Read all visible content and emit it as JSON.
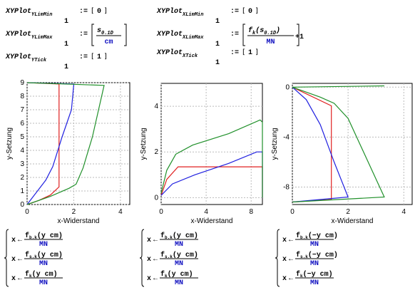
{
  "definitions": [
    {
      "name": "XYPlot",
      "sub": "YLimMin",
      "index": "1",
      "assign": ":=",
      "value": "0"
    },
    {
      "name": "XYPlot",
      "sub": "YLimMax",
      "index": "1",
      "assign": ":=",
      "num": "s",
      "num_sub": "0.1D",
      "den": "cm"
    },
    {
      "name": "XYPlot",
      "sub": "YTick",
      "index": "1",
      "assign": ":=",
      "value": "1"
    },
    {
      "name": "XYPlot",
      "sub": "XLimMin",
      "index": "1",
      "assign": ":=",
      "value": "0"
    },
    {
      "name": "XYPlot",
      "sub": "XLimMax",
      "index": "1",
      "assign": ":=",
      "num": "f",
      "num_sub": "k",
      "arg": "(s",
      "arg_sub": "0.1D",
      "arg_end": ")",
      "den": "MN",
      "tail": "+1"
    },
    {
      "name": "XYPlot",
      "sub": "XTick",
      "index": "1",
      "assign": ":=",
      "value": "1"
    }
  ],
  "chart_data": [
    {
      "type": "line",
      "x_label": "x-Widerstand",
      "y_label": "y-Setzung",
      "xlim": [
        0,
        4.4
      ],
      "ylim": [
        0,
        9
      ],
      "xticks": [
        0,
        2,
        4
      ],
      "yticks": [
        0,
        1,
        2,
        3,
        4,
        5,
        6,
        7,
        8,
        9
      ],
      "grid": true,
      "series": [
        {
          "color": "#e02020",
          "x": [
            0,
            0.5,
            1.0,
            1.37,
            1.37,
            0
          ],
          "values": [
            0,
            0.3,
            0.7,
            1.3,
            8.9,
            9
          ]
        },
        {
          "color": "#2020e0",
          "x": [
            0,
            0.8,
            1.1,
            1.5,
            1.9,
            2.0,
            0
          ],
          "values": [
            0,
            1.8,
            2.8,
            5,
            7,
            8.9,
            9
          ]
        },
        {
          "color": "#20902a",
          "x": [
            0,
            1.0,
            1.8,
            2.1,
            2.4,
            2.8,
            3.3,
            0
          ],
          "values": [
            0,
            0.6,
            1.2,
            1.5,
            2.7,
            5,
            8.8,
            9
          ]
        }
      ]
    },
    {
      "type": "line",
      "x_label": "x-Widerstand",
      "y_label": "y-Setzung",
      "xlim": [
        0,
        9
      ],
      "ylim": [
        -0.3,
        5
      ],
      "xticks": [
        0,
        4,
        8
      ],
      "yticks": [
        0,
        2,
        4
      ],
      "grid": true,
      "series": [
        {
          "color": "#e02020",
          "x": [
            0,
            0.5,
            1.5,
            9,
            9
          ],
          "values": [
            0.1,
            0.8,
            1.35,
            1.35,
            0
          ]
        },
        {
          "color": "#2020e0",
          "x": [
            0,
            1,
            3,
            6,
            8.5,
            9,
            9
          ],
          "values": [
            0.1,
            0.6,
            1.0,
            1.5,
            2.0,
            2.0,
            0
          ]
        },
        {
          "color": "#20902a",
          "x": [
            0,
            0.5,
            1.3,
            2.8,
            6,
            8.8,
            9,
            9
          ],
          "values": [
            0.2,
            1.2,
            1.9,
            2.3,
            2.8,
            3.4,
            3.3,
            0
          ]
        }
      ]
    },
    {
      "type": "line",
      "x_label": "x-Widerstand",
      "y_label": "y-Setzung",
      "xlim": [
        0,
        4.3
      ],
      "ylim": [
        -9.4,
        0.3
      ],
      "xticks": [
        0,
        2,
        4
      ],
      "yticks": [
        0,
        -4,
        -8
      ],
      "grid": true,
      "series": [
        {
          "color": "#e02020",
          "x": [
            0,
            1.4,
            1.4,
            0
          ],
          "values": [
            0,
            -1.5,
            -9,
            -9.2
          ]
        },
        {
          "color": "#2020e0",
          "x": [
            0,
            0.5,
            1,
            1.5,
            2,
            0
          ],
          "values": [
            0,
            -1,
            -3,
            -6,
            -8.8,
            -9.2
          ]
        },
        {
          "color": "#20902a",
          "x": [
            3.3,
            0,
            1,
            1.5,
            2,
            3.3,
            0
          ],
          "values": [
            0.1,
            0,
            -0.8,
            -1.3,
            -2.5,
            -8.8,
            -9.2
          ]
        }
      ]
    }
  ],
  "blocks": [
    {
      "rows": [
        {
          "lhs": "x",
          "op": "←",
          "num": "f",
          "num_sub": "b.k",
          "arg": "(y cm)",
          "den": "MN"
        },
        {
          "lhs": "x",
          "op": "←",
          "num": "f",
          "num_sub": "s.k",
          "arg": "(y cm)",
          "den": "MN"
        },
        {
          "lhs": "x",
          "op": "←",
          "num": "f",
          "num_sub": "k",
          "arg": "(y cm)",
          "den": "MN"
        }
      ]
    },
    {
      "rows": [
        {
          "lhs": "x",
          "op": "←",
          "num": "f",
          "num_sub": "b.k",
          "arg": "(y cm)",
          "den": "MN"
        },
        {
          "lhs": "x",
          "op": "←",
          "num": "f",
          "num_sub": "s.k",
          "arg": "(y cm)",
          "den": "MN"
        },
        {
          "lhs": "x",
          "op": "←",
          "num": "f",
          "num_sub": "k",
          "arg": "(y cm)",
          "den": "MN"
        }
      ]
    },
    {
      "rows": [
        {
          "lhs": "x",
          "op": "←",
          "num": "f",
          "num_sub": "b.k",
          "arg": "(−y cm)",
          "den": "MN"
        },
        {
          "lhs": "x",
          "op": "←",
          "num": "f",
          "num_sub": "s.k",
          "arg": "(−y cm)",
          "den": "MN"
        },
        {
          "lhs": "x",
          "op": "←",
          "num": "f",
          "num_sub": "k",
          "arg": "(−y cm)",
          "den": "MN"
        }
      ]
    }
  ]
}
